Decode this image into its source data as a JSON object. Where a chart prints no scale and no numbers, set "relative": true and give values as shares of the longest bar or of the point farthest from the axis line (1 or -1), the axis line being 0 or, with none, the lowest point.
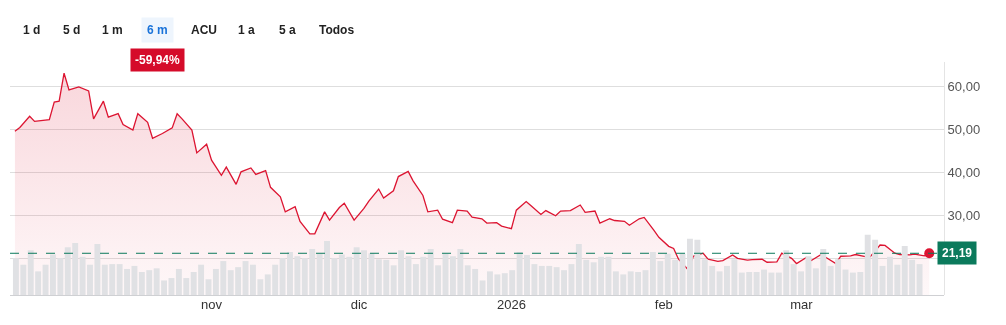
{
  "chart_data": [
    {
      "type": "area",
      "color": "#dc1431",
      "x": [
        "2025-09-22",
        "2025-09-23",
        "2025-09-25",
        "2025-09-26",
        "2025-09-29",
        "2025-09-30",
        "2025-10-01",
        "2025-10-02",
        "2025-10-03",
        "2025-10-05",
        "2025-10-07",
        "2025-10-08",
        "2025-10-10",
        "2025-10-11",
        "2025-10-13",
        "2025-10-14",
        "2025-10-16",
        "2025-10-17",
        "2025-10-19",
        "2025-10-20",
        "2025-10-22",
        "2025-10-24",
        "2025-10-25",
        "2025-10-26",
        "2025-10-28",
        "2025-10-29",
        "2025-10-31",
        "2025-11-01",
        "2025-11-03",
        "2025-11-04",
        "2025-11-06",
        "2025-11-07",
        "2025-11-09",
        "2025-11-10",
        "2025-11-12",
        "2025-11-13",
        "2025-11-15",
        "2025-11-16",
        "2025-11-18",
        "2025-11-19",
        "2025-11-21",
        "2025-11-22",
        "2025-11-24",
        "2025-11-25",
        "2025-11-27",
        "2025-11-28",
        "2025-11-30",
        "2025-12-02",
        "2025-12-03",
        "2025-12-05",
        "2025-12-06",
        "2025-12-08",
        "2025-12-09",
        "2025-12-11",
        "2025-12-12",
        "2025-12-14",
        "2025-12-15",
        "2025-12-17",
        "2025-12-18",
        "2025-12-20",
        "2025-12-21",
        "2025-12-23",
        "2025-12-24",
        "2025-12-26",
        "2025-12-27",
        "2025-12-29",
        "2025-12-30",
        "2026-01-01",
        "2026-01-02",
        "2026-01-04",
        "2026-01-05",
        "2026-01-07",
        "2026-01-08",
        "2026-01-10",
        "2026-01-11",
        "2026-01-13",
        "2026-01-15",
        "2026-01-16",
        "2026-01-18",
        "2026-01-19",
        "2026-01-21",
        "2026-01-22",
        "2026-01-24",
        "2026-01-25",
        "2026-01-27",
        "2026-01-28",
        "2026-01-30",
        "2026-01-31",
        "2026-02-02",
        "2026-02-03",
        "2026-02-04",
        "2026-02-06",
        "2026-02-07",
        "2026-02-09",
        "2026-02-10",
        "2026-02-12",
        "2026-02-13",
        "2026-02-15",
        "2026-02-16",
        "2026-02-18",
        "2026-02-19",
        "2026-02-21",
        "2026-02-22",
        "2026-02-24",
        "2026-02-25",
        "2026-02-27",
        "2026-02-28",
        "2026-03-02",
        "2026-03-03",
        "2026-03-05",
        "2026-03-06",
        "2026-03-08",
        "2026-03-09",
        "2026-03-11",
        "2026-03-12",
        "2026-03-14",
        "2026-03-15",
        "2026-03-17",
        "2026-03-18",
        "2026-03-20",
        "2026-03-21",
        "2026-03-23",
        "2026-03-24",
        "2026-03-26",
        "2026-03-27"
      ],
      "values": [
        49.5,
        50.4,
        53.0,
        51.8,
        52.2,
        56.3,
        56.5,
        63.0,
        59.1,
        59.8,
        58.9,
        52.4,
        56.5,
        52.8,
        53.6,
        51.1,
        49.8,
        53.6,
        51.6,
        47.9,
        49.0,
        50.3,
        53.6,
        52.4,
        49.8,
        44.5,
        46.5,
        42.8,
        39.3,
        41.2,
        37.2,
        40.1,
        41.0,
        39.5,
        40.4,
        36.5,
        34.3,
        30.8,
        32.0,
        28.6,
        25.7,
        25.7,
        30.8,
        28.9,
        31.8,
        32.8,
        28.9,
        31.6,
        33.3,
        36.1,
        34.0,
        35.7,
        39.0,
        40.2,
        38.0,
        34.6,
        30.8,
        31.2,
        29.1,
        28.3,
        31.2,
        31.0,
        29.6,
        29.2,
        28.2,
        28.3,
        27.5,
        26.9,
        31.2,
        33.2,
        32.2,
        30.2,
        31.1,
        29.9,
        31.0,
        31.1,
        32.4,
        30.7,
        31.0,
        28.2,
        29.2,
        28.8,
        28.6,
        27.7,
        29.2,
        29.5,
        26.5,
        24.9,
        22.8,
        22.3,
        19.8,
        17.3,
        20.5,
        21.2,
        19.8,
        19.3,
        19.5,
        20.8,
        20.0,
        19.6,
        19.7,
        19.8,
        19.1,
        19.2,
        21.2,
        20.0,
        18.8,
        20.2,
        19.5,
        20.9,
        20.2,
        18.8,
        20.5,
        20.6,
        20.9,
        20.4,
        20.4,
        23.1,
        23.0,
        21.2,
        20.9,
        20.8,
        21.0,
        20.6,
        21.19
      ],
      "xlim": [
        "2025-09-21",
        "2026-03-30"
      ],
      "xticks": [
        {
          "value": "2025-11-01",
          "label": "nov"
        },
        {
          "value": "2025-12-01",
          "label": "dic"
        },
        {
          "value": "2026-01-01",
          "label": "2026"
        },
        {
          "value": "2026-02-01",
          "label": "feb"
        },
        {
          "value": "2026-03-01",
          "label": "mar"
        }
      ],
      "ylim": [
        11.5,
        65.6
      ],
      "yticks": [
        {
          "value": 20,
          "label": null
        },
        {
          "value": 30,
          "label": "30,00"
        },
        {
          "value": 40,
          "label": "40,00"
        },
        {
          "value": 50,
          "label": "50,00"
        },
        {
          "value": 60,
          "label": "60,00"
        }
      ],
      "grid": "y",
      "ref_lines": [
        {
          "axis": "y",
          "value": 21.19,
          "color": "#0b7a5c",
          "line_style": "dashed"
        }
      ],
      "annotations": [
        "1 d",
        "5 d",
        "1 m",
        "6 m",
        "ACU",
        "1 a",
        "5 a",
        "Todos",
        "-59,94%",
        {
          "text": "21,19",
          "x": "2026-03-27",
          "y": 21.19
        }
      ]
    },
    {
      "type": "bar",
      "relative": true,
      "color": "#e0e1e4",
      "categories": [
        null,
        null,
        null,
        null,
        null,
        null,
        null,
        null,
        null,
        null,
        null,
        null,
        null,
        null,
        null,
        null,
        null,
        null,
        null,
        null,
        null,
        null,
        null,
        null,
        null,
        null,
        null,
        null,
        null,
        null,
        null,
        null,
        null,
        null,
        null,
        null,
        null,
        null,
        null,
        null,
        null,
        null,
        null,
        null,
        null,
        null,
        null,
        null,
        null,
        null,
        null,
        null,
        null,
        null,
        null,
        null,
        null,
        null,
        null,
        null,
        null,
        null,
        null,
        null,
        null,
        null,
        null,
        null,
        null,
        null,
        null,
        null,
        null,
        null,
        null,
        null,
        null,
        null,
        null,
        null,
        null,
        null,
        null,
        null,
        null,
        null,
        null,
        null,
        null,
        null,
        null,
        null,
        null,
        null,
        null,
        null,
        null,
        null,
        null,
        null,
        null,
        null,
        null,
        null,
        null,
        null,
        null,
        null,
        null,
        null,
        null,
        null,
        null,
        null,
        null,
        null,
        null,
        null,
        null,
        null,
        null,
        null,
        null
      ],
      "values": [
        0.61,
        0.5,
        0.74,
        0.39,
        0.5,
        0.67,
        0.61,
        0.79,
        0.86,
        0.63,
        0.5,
        0.84,
        0.5,
        0.51,
        0.51,
        0.43,
        0.48,
        0.38,
        0.41,
        0.44,
        0.24,
        0.28,
        0.43,
        0.28,
        0.38,
        0.5,
        0.26,
        0.43,
        0.56,
        0.41,
        0.46,
        0.56,
        0.5,
        0.26,
        0.34,
        0.5,
        0.61,
        0.71,
        0.64,
        0.61,
        0.76,
        0.68,
        0.89,
        0.61,
        0.67,
        0.63,
        0.79,
        0.74,
        0.69,
        0.59,
        0.58,
        0.49,
        0.74,
        0.64,
        0.51,
        0.63,
        0.76,
        0.49,
        0.68,
        0.64,
        0.76,
        0.49,
        0.43,
        0.24,
        0.39,
        0.34,
        0.36,
        0.41,
        0.71,
        0.66,
        0.51,
        0.48,
        0.48,
        0.46,
        0.41,
        0.51,
        0.84,
        0.58,
        0.54,
        0.63,
        0.63,
        0.39,
        0.34,
        0.39,
        0.38,
        0.41,
        0.71,
        0.56,
        0.68,
        0.58,
        0.68,
        0.93,
        0.91,
        0.59,
        0.48,
        0.39,
        0.48,
        0.59,
        0.37,
        0.38,
        0.38,
        0.42,
        0.37,
        0.37,
        0.74,
        0.51,
        0.39,
        0.64,
        0.44,
        0.76,
        0.48,
        0.59,
        0.42,
        0.37,
        0.38,
        1,
        0.91,
        0.48,
        0.63,
        0.5,
        0.81,
        0.58,
        0.51
      ]
    }
  ]
}
